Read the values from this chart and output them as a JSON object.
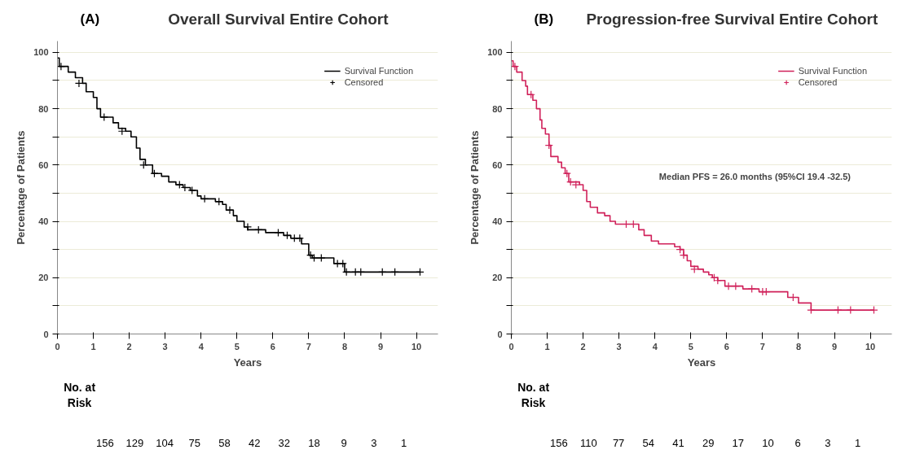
{
  "chart_data": [
    {
      "type": "step",
      "title": "Overall Survival Entire Cohort",
      "xlabel": "Years",
      "ylabel": "Percentage of Patients",
      "xlim": [
        0,
        10.6
      ],
      "ylim": [
        0,
        104
      ],
      "xticks": [
        0,
        1,
        2,
        3,
        4,
        5,
        6,
        7,
        8,
        9,
        10
      ],
      "yticks": [
        0,
        {
          "value": 10,
          "label": null
        },
        20,
        {
          "value": 30,
          "label": null
        },
        40,
        {
          "value": 50,
          "label": null
        },
        60,
        {
          "value": 70,
          "label": null
        },
        80,
        {
          "value": 90,
          "label": null
        },
        100
      ],
      "grid": "y",
      "legend": "top right",
      "annotations": [
        "(A)",
        "No. at Risk",
        "156",
        "129",
        "104",
        "75",
        "58",
        "42",
        "32",
        "18",
        "9",
        "3",
        "1"
      ],
      "series": [
        {
          "name": "Survival Function",
          "color": "#000000",
          "x": [
            0,
            0.05,
            0.3,
            0.5,
            0.7,
            0.8,
            1.0,
            1.1,
            1.2,
            1.55,
            1.7,
            1.9,
            2.05,
            2.2,
            2.3,
            2.45,
            2.65,
            2.9,
            3.1,
            3.3,
            3.5,
            3.7,
            3.9,
            4.0,
            4.4,
            4.6,
            4.7,
            4.9,
            5.0,
            5.2,
            5.3,
            5.8,
            6.3,
            6.5,
            6.8,
            7.0,
            7.1,
            7.7,
            8.0,
            10.1
          ],
          "values": [
            98,
            95,
            93,
            91,
            89,
            86,
            84,
            80,
            77,
            75,
            73,
            72,
            70,
            66,
            62,
            60,
            57,
            56,
            54,
            53,
            52,
            51,
            49,
            48,
            47,
            46,
            44,
            42,
            40,
            38,
            37,
            36,
            35,
            34,
            32,
            28,
            27,
            25,
            22,
            22
          ]
        },
        {
          "name": "Censored",
          "type": "scatter",
          "marker": "cross",
          "color": "#000000",
          "x": [
            0.1,
            0.6,
            1.3,
            1.8,
            2.4,
            2.7,
            3.4,
            3.55,
            3.75,
            4.1,
            4.5,
            4.8,
            5.3,
            5.6,
            6.15,
            6.4,
            6.6,
            6.75,
            7.05,
            7.15,
            7.35,
            7.8,
            7.95,
            8.05,
            8.3,
            8.45,
            9.05,
            9.4,
            10.1
          ],
          "values": [
            95,
            89,
            77,
            72,
            60,
            57,
            53,
            52,
            51,
            48,
            47,
            44,
            38,
            37,
            36,
            35,
            34,
            34,
            28,
            27,
            27,
            25,
            25,
            22,
            22,
            22,
            22,
            22,
            22
          ]
        }
      ]
    },
    {
      "type": "step",
      "title": "Progression-free Survival Entire Cohort",
      "xlabel": "Years",
      "ylabel": "Percentage of Patients",
      "xlim": [
        0,
        10.6
      ],
      "ylim": [
        0,
        104
      ],
      "xticks": [
        0,
        1,
        2,
        3,
        4,
        5,
        6,
        7,
        8,
        9,
        10
      ],
      "yticks": [
        0,
        {
          "value": 10,
          "label": null
        },
        20,
        {
          "value": 30,
          "label": null
        },
        40,
        {
          "value": 50,
          "label": null
        },
        60,
        {
          "value": 70,
          "label": null
        },
        80,
        {
          "value": 90,
          "label": null
        },
        100
      ],
      "grid": "y",
      "legend": "top right",
      "annotations": [
        "(B)",
        "Median PFS = 26.0 months (95%CI 19.4 -32.5)",
        "No. at Risk",
        "156",
        "110",
        "77",
        "54",
        "41",
        "29",
        "17",
        "10",
        "6",
        "3",
        "1"
      ],
      "series": [
        {
          "name": "Survival Function",
          "color": "#d0215a",
          "x": [
            0,
            0.05,
            0.15,
            0.3,
            0.4,
            0.45,
            0.6,
            0.7,
            0.8,
            0.85,
            0.95,
            1.05,
            1.1,
            1.3,
            1.4,
            1.5,
            1.6,
            1.9,
            2.0,
            2.1,
            2.2,
            2.4,
            2.6,
            2.75,
            2.9,
            3.55,
            3.7,
            3.9,
            4.1,
            4.55,
            4.7,
            4.8,
            4.9,
            5.0,
            5.2,
            5.35,
            5.5,
            5.6,
            5.75,
            5.95,
            6.45,
            6.9,
            7.7,
            8.0,
            8.35,
            10.1
          ],
          "values": [
            97,
            95,
            93,
            90,
            88,
            85,
            83,
            80,
            76,
            73,
            71,
            67,
            63,
            61,
            59,
            57,
            54,
            53,
            51,
            47,
            45,
            43,
            42,
            40,
            39,
            37,
            35,
            33,
            32,
            31,
            30,
            28,
            26,
            24,
            23,
            22,
            21,
            20,
            19,
            17,
            16,
            15,
            13,
            11,
            8.5,
            8.5
          ]
        },
        {
          "name": "Censored",
          "type": "scatter",
          "marker": "cross",
          "color": "#d0215a",
          "x": [
            0.1,
            0.55,
            1.05,
            1.55,
            1.65,
            1.8,
            3.2,
            3.4,
            4.7,
            4.8,
            5.1,
            5.65,
            5.75,
            6.05,
            6.25,
            6.7,
            7.0,
            7.1,
            7.85,
            8.35,
            9.1,
            9.45,
            10.1
          ],
          "values": [
            95,
            85,
            67,
            57,
            54,
            53,
            39,
            39,
            30,
            28,
            23,
            20,
            19,
            17,
            17,
            16,
            15,
            15,
            13,
            8.5,
            8.5,
            8.5,
            8.5
          ]
        }
      ]
    }
  ]
}
